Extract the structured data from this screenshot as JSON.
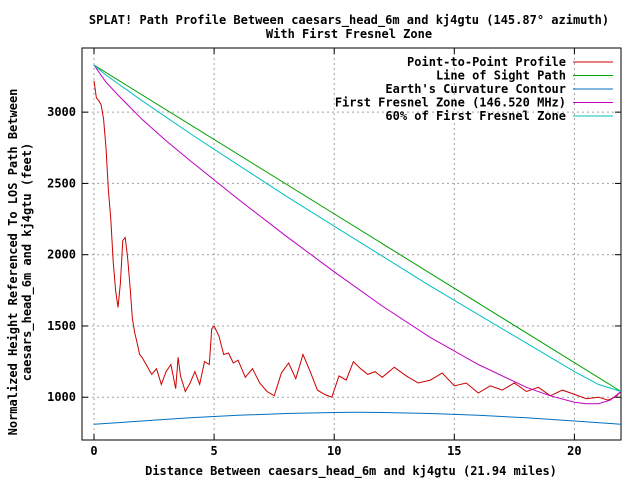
{
  "chart_data": {
    "type": "line",
    "title": "SPLAT! Path Profile Between caesars_head_6m and kj4gtu (145.87° azimuth)",
    "subtitle": "With First Fresnel Zone",
    "xlabel": "Distance Between caesars_head_6m and kj4gtu (21.94 miles)",
    "ylabel_lines": [
      "Normalized Height Referenced To LOS Path Between",
      "caesars_head_6m and kj4gtu (feet)"
    ],
    "xlim": [
      -0.5,
      21.94
    ],
    "ylim": [
      700,
      3450
    ],
    "x_ticks": [
      0,
      5,
      10,
      15,
      20
    ],
    "y_ticks": [
      1000,
      1500,
      2000,
      2500,
      3000
    ],
    "x_tick_labels": [
      "0",
      "5",
      "10",
      "15",
      "20"
    ],
    "y_tick_labels": [
      "1000",
      "1500",
      "2000",
      "2500",
      "3000"
    ],
    "grid": true,
    "legend_position": "top-right",
    "series": [
      {
        "name": "Point-to-Point Profile",
        "color": "#cc0000",
        "x": [
          0,
          0.1,
          0.2,
          0.3,
          0.4,
          0.5,
          0.6,
          0.7,
          0.8,
          0.9,
          1.0,
          1.1,
          1.2,
          1.3,
          1.4,
          1.5,
          1.6,
          1.7,
          1.8,
          1.9,
          2.0,
          2.2,
          2.4,
          2.6,
          2.8,
          3.0,
          3.2,
          3.4,
          3.5,
          3.6,
          3.8,
          4.0,
          4.2,
          4.4,
          4.6,
          4.8,
          4.9,
          5.0,
          5.2,
          5.4,
          5.6,
          5.8,
          6.0,
          6.3,
          6.6,
          6.9,
          7.2,
          7.5,
          7.8,
          8.1,
          8.4,
          8.7,
          9.0,
          9.3,
          9.6,
          9.9,
          10.2,
          10.5,
          10.8,
          11.1,
          11.4,
          11.7,
          12.0,
          12.5,
          13.0,
          13.5,
          14.0,
          14.5,
          15.0,
          15.5,
          16.0,
          16.5,
          17.0,
          17.5,
          18.0,
          18.5,
          19.0,
          19.5,
          20.0,
          20.5,
          21.0,
          21.4,
          21.7,
          21.94
        ],
        "values": [
          3220,
          3100,
          3080,
          3050,
          2950,
          2750,
          2450,
          2250,
          1950,
          1750,
          1630,
          1800,
          2100,
          2120,
          1980,
          1780,
          1550,
          1450,
          1380,
          1300,
          1280,
          1220,
          1160,
          1200,
          1090,
          1180,
          1230,
          1060,
          1280,
          1150,
          1040,
          1100,
          1180,
          1090,
          1250,
          1230,
          1480,
          1500,
          1430,
          1300,
          1310,
          1240,
          1260,
          1140,
          1200,
          1100,
          1040,
          1010,
          1170,
          1240,
          1130,
          1300,
          1180,
          1050,
          1020,
          1000,
          1150,
          1120,
          1250,
          1200,
          1160,
          1180,
          1140,
          1210,
          1150,
          1100,
          1120,
          1170,
          1080,
          1100,
          1030,
          1080,
          1050,
          1100,
          1040,
          1070,
          1010,
          1050,
          1020,
          990,
          1000,
          980,
          1000,
          1040
        ]
      },
      {
        "name": "Line of Sight Path",
        "color": "#00a000",
        "x": [
          0,
          21.94
        ],
        "values": [
          3330,
          1040
        ]
      },
      {
        "name": "Earth's Curvature Contour",
        "color": "#0070c0",
        "x": [
          0,
          2,
          4,
          6,
          8,
          10,
          10.97,
          12,
          14,
          16,
          18,
          20,
          21.94
        ],
        "values": [
          810,
          833,
          856,
          873,
          886,
          893,
          894,
          893,
          886,
          873,
          856,
          833,
          810
        ]
      },
      {
        "name": "First Fresnel Zone (146.520 MHz)",
        "color": "#c000c0",
        "x": [
          0,
          0.5,
          1,
          2,
          3,
          4,
          6,
          8,
          10,
          12,
          14,
          16,
          18,
          19,
          20,
          20.5,
          21,
          21.5,
          21.94
        ],
        "values": [
          3330,
          3210,
          3120,
          2950,
          2800,
          2660,
          2390,
          2130,
          1880,
          1640,
          1420,
          1230,
          1070,
          1010,
          965,
          955,
          955,
          980,
          1040
        ]
      },
      {
        "name": "60% of First Fresnel Zone",
        "color": "#00c0c0",
        "x": [
          0,
          0.5,
          1,
          2,
          4,
          6,
          8,
          10,
          12,
          14,
          16,
          18,
          19,
          20,
          21,
          21.94
        ],
        "values": [
          3330,
          3260,
          3200,
          3080,
          2850,
          2630,
          2410,
          2200,
          1990,
          1780,
          1580,
          1380,
          1280,
          1180,
          1090,
          1040
        ]
      }
    ]
  }
}
